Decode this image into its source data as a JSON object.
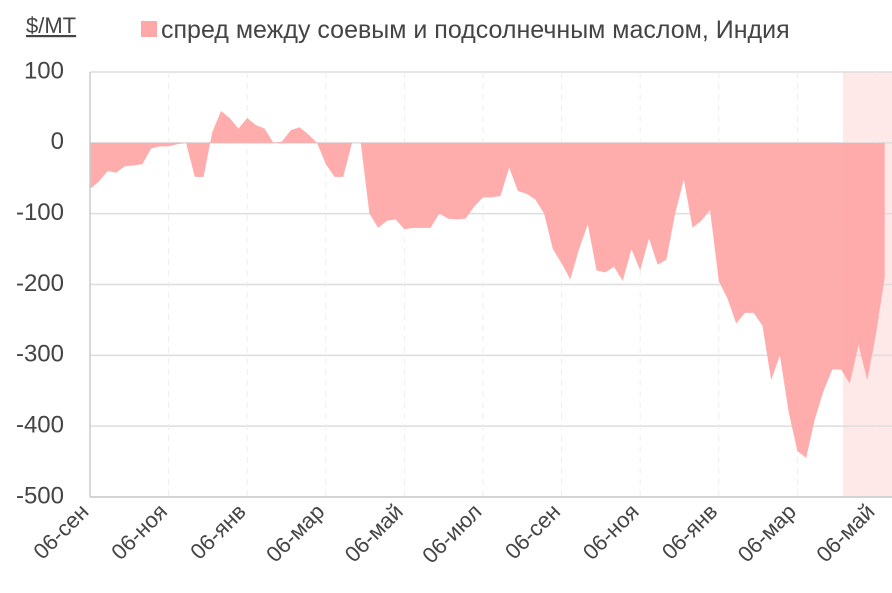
{
  "chart_data": {
    "type": "area",
    "y_label": "$/MT",
    "series": [
      {
        "name": "спред между соевым и подсолнечным маслом, Индия",
        "color": "#ffa8a8",
        "values": [
          -65,
          -55,
          -40,
          -42,
          -33,
          -32,
          -30,
          -8,
          -5,
          -5,
          -2,
          0,
          -48,
          -48,
          15,
          45,
          35,
          20,
          35,
          25,
          20,
          0,
          2,
          18,
          22,
          12,
          0,
          -30,
          -48,
          -48,
          0,
          0,
          -100,
          -120,
          -110,
          -108,
          -122,
          -120,
          -120,
          -120,
          -100,
          -107,
          -108,
          -107,
          -90,
          -77,
          -77,
          -75,
          -35,
          -68,
          -72,
          -80,
          -100,
          -150,
          -170,
          -193,
          -150,
          -115,
          -180,
          -183,
          -175,
          -195,
          -150,
          -180,
          -135,
          -172,
          -165,
          -100,
          -52,
          -120,
          -110,
          -95,
          -195,
          -220,
          -255,
          -240,
          -240,
          -258,
          -335,
          -300,
          -380,
          -435,
          -445,
          -390,
          -350,
          -320,
          -320,
          -340,
          -285,
          -335,
          -270,
          -190
        ]
      }
    ],
    "categories": [
      "06-сен",
      null,
      null,
      null,
      null,
      null,
      null,
      null,
      null,
      "06-ноя",
      null,
      null,
      null,
      null,
      null,
      null,
      null,
      null,
      "06-янв",
      null,
      null,
      null,
      null,
      null,
      null,
      null,
      null,
      "06-мар",
      null,
      null,
      null,
      null,
      null,
      null,
      null,
      null,
      "06-май",
      null,
      null,
      null,
      null,
      null,
      null,
      null,
      null,
      "06-июл",
      null,
      null,
      null,
      null,
      null,
      null,
      null,
      null,
      "06-сен",
      null,
      null,
      null,
      null,
      null,
      null,
      null,
      null,
      "06-ноя",
      null,
      null,
      null,
      null,
      null,
      null,
      null,
      null,
      "06-янв",
      null,
      null,
      null,
      null,
      null,
      null,
      null,
      null,
      "06-мар",
      null,
      null,
      null,
      null,
      null,
      null,
      null,
      null,
      "06-май",
      null
    ],
    "ylim": [
      -500,
      100
    ],
    "yticks": [
      -500,
      -400,
      -300,
      -200,
      -100,
      0,
      100
    ],
    "grid": true
  }
}
